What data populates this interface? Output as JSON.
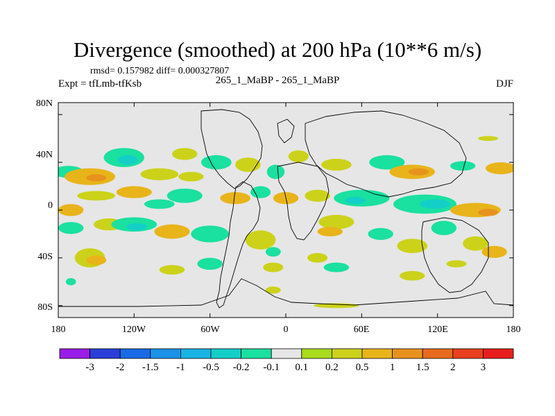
{
  "title": "Divergence (smoothed) at 200 hPa (10**6 m/s)",
  "stats": "rmsd= 0.157982 diff= 0.000327807",
  "experiment": "Expt = tfLmb-tfKsb",
  "comparison": "265_1_MaBP - 265_1_MaBP",
  "season": "DJF",
  "chart_data": {
    "type": "heatmap",
    "projection": "cylindrical-equidistant",
    "variable": "Divergence (smoothed) at 200 hPa",
    "units": "10**6 m/s",
    "x_range": [
      -180,
      180
    ],
    "y_range": [
      -90,
      90
    ],
    "x_ticks": [
      {
        "value": -180,
        "label": "180"
      },
      {
        "value": -120,
        "label": "120W"
      },
      {
        "value": -60,
        "label": "60W"
      },
      {
        "value": 0,
        "label": "0"
      },
      {
        "value": 60,
        "label": "60E"
      },
      {
        "value": 120,
        "label": "120E"
      },
      {
        "value": 180,
        "label": "180"
      }
    ],
    "y_ticks": [
      {
        "value": 80,
        "label": "80N"
      },
      {
        "value": 40,
        "label": "40N"
      },
      {
        "value": 0,
        "label": "0"
      },
      {
        "value": -40,
        "label": "40S"
      },
      {
        "value": -80,
        "label": "80S"
      }
    ],
    "contour_levels": [
      "-3",
      "-2",
      "-1.5",
      "-1",
      "-0.5",
      "-0.2",
      "-0.1",
      "0.1",
      "0.2",
      "0.5",
      "1",
      "1.5",
      "2",
      "3"
    ],
    "colorbar_colors": [
      "#9a1ee8",
      "#2a3fd8",
      "#1a6ae6",
      "#1a92e8",
      "#1ab3e4",
      "#14cfc8",
      "#1ae0a0",
      "#e6e6e6",
      "#a8dc1c",
      "#ccd21a",
      "#e8b41a",
      "#e8921e",
      "#e86a1e",
      "#e8401e",
      "#e81e1e"
    ],
    "field_blobs": [
      {
        "lon": -172,
        "lat": 32,
        "rx": 12,
        "ry": 5,
        "level": -0.2
      },
      {
        "lon": -155,
        "lat": 28,
        "rx": 20,
        "ry": 7,
        "level": 0.5
      },
      {
        "lon": -150,
        "lat": 27,
        "rx": 8,
        "ry": 3,
        "level": 1
      },
      {
        "lon": -128,
        "lat": 44,
        "rx": 16,
        "ry": 8,
        "level": -0.2
      },
      {
        "lon": -125,
        "lat": 42,
        "rx": 8,
        "ry": 4,
        "level": -0.5
      },
      {
        "lon": -100,
        "lat": 30,
        "rx": 15,
        "ry": 5,
        "level": 0.2
      },
      {
        "lon": -80,
        "lat": 47,
        "rx": 10,
        "ry": 5,
        "level": 0.2
      },
      {
        "lon": -75,
        "lat": 28,
        "rx": 10,
        "ry": 4,
        "level": 0.2
      },
      {
        "lon": -55,
        "lat": 40,
        "rx": 12,
        "ry": 6,
        "level": -0.2
      },
      {
        "lon": -30,
        "lat": 38,
        "rx": 10,
        "ry": 6,
        "level": 0.2
      },
      {
        "lon": -8,
        "lat": 32,
        "rx": 7,
        "ry": 6,
        "level": -0.2
      },
      {
        "lon": 10,
        "lat": 45,
        "rx": 8,
        "ry": 5,
        "level": 0.2
      },
      {
        "lon": 40,
        "lat": 38,
        "rx": 12,
        "ry": 5,
        "level": 0.2
      },
      {
        "lon": 80,
        "lat": 40,
        "rx": 14,
        "ry": 6,
        "level": -0.2
      },
      {
        "lon": 100,
        "lat": 32,
        "rx": 18,
        "ry": 6,
        "level": 0.5
      },
      {
        "lon": 105,
        "lat": 32,
        "rx": 8,
        "ry": 3,
        "level": 1
      },
      {
        "lon": 140,
        "lat": 37,
        "rx": 10,
        "ry": 4,
        "level": -0.2
      },
      {
        "lon": 170,
        "lat": 35,
        "rx": 12,
        "ry": 5,
        "level": 0.5
      },
      {
        "lon": 160,
        "lat": 60,
        "rx": 8,
        "ry": 2,
        "level": 0.2
      },
      {
        "lon": -150,
        "lat": 12,
        "rx": 15,
        "ry": 4,
        "level": 0.2
      },
      {
        "lon": -120,
        "lat": 15,
        "rx": 14,
        "ry": 5,
        "level": 0.5
      },
      {
        "lon": -100,
        "lat": 5,
        "rx": 12,
        "ry": 4,
        "level": -0.2
      },
      {
        "lon": -80,
        "lat": 12,
        "rx": 14,
        "ry": 6,
        "level": -0.2
      },
      {
        "lon": -40,
        "lat": 10,
        "rx": 12,
        "ry": 5,
        "level": 0.5
      },
      {
        "lon": -20,
        "lat": 15,
        "rx": 8,
        "ry": 5,
        "level": -0.2
      },
      {
        "lon": 0,
        "lat": 10,
        "rx": 10,
        "ry": 5,
        "level": 0.5
      },
      {
        "lon": 25,
        "lat": 12,
        "rx": 10,
        "ry": 5,
        "level": 0.2
      },
      {
        "lon": 60,
        "lat": 10,
        "rx": 22,
        "ry": 7,
        "level": -0.2
      },
      {
        "lon": 55,
        "lat": 8,
        "rx": 8,
        "ry": 3,
        "level": -0.5
      },
      {
        "lon": 110,
        "lat": 5,
        "rx": 25,
        "ry": 8,
        "level": -0.2
      },
      {
        "lon": 118,
        "lat": 5,
        "rx": 12,
        "ry": 4,
        "level": -0.5
      },
      {
        "lon": 150,
        "lat": 0,
        "rx": 20,
        "ry": 6,
        "level": 0.5
      },
      {
        "lon": 160,
        "lat": -2,
        "rx": 8,
        "ry": 3,
        "level": 1
      },
      {
        "lon": -170,
        "lat": 0,
        "rx": 10,
        "ry": 5,
        "level": 0.5
      },
      {
        "lon": -170,
        "lat": -15,
        "rx": 10,
        "ry": 5,
        "level": -0.2
      },
      {
        "lon": -140,
        "lat": -12,
        "rx": 12,
        "ry": 5,
        "level": 0.2
      },
      {
        "lon": -120,
        "lat": -12,
        "rx": 18,
        "ry": 6,
        "level": -0.2
      },
      {
        "lon": -118,
        "lat": -14,
        "rx": 8,
        "ry": 3,
        "level": -0.5
      },
      {
        "lon": -90,
        "lat": -18,
        "rx": 14,
        "ry": 6,
        "level": 0.5
      },
      {
        "lon": -60,
        "lat": -20,
        "rx": 15,
        "ry": 7,
        "level": -0.2
      },
      {
        "lon": -20,
        "lat": -25,
        "rx": 12,
        "ry": 8,
        "level": 0.2
      },
      {
        "lon": -10,
        "lat": -35,
        "rx": 6,
        "ry": 4,
        "level": -0.2
      },
      {
        "lon": 40,
        "lat": -10,
        "rx": 14,
        "ry": 6,
        "level": 0.2
      },
      {
        "lon": 35,
        "lat": -18,
        "rx": 10,
        "ry": 4,
        "level": 0.5
      },
      {
        "lon": 75,
        "lat": -20,
        "rx": 10,
        "ry": 5,
        "level": -0.2
      },
      {
        "lon": 100,
        "lat": -30,
        "rx": 12,
        "ry": 6,
        "level": 0.2
      },
      {
        "lon": 125,
        "lat": -15,
        "rx": 10,
        "ry": 6,
        "level": -0.2
      },
      {
        "lon": 150,
        "lat": -28,
        "rx": 10,
        "ry": 6,
        "level": 0.2
      },
      {
        "lon": 165,
        "lat": -35,
        "rx": 10,
        "ry": 5,
        "level": 0.5
      },
      {
        "lon": -155,
        "lat": -40,
        "rx": 12,
        "ry": 8,
        "level": 0.2
      },
      {
        "lon": -150,
        "lat": -42,
        "rx": 8,
        "ry": 4,
        "level": 0.5
      },
      {
        "lon": -170,
        "lat": -60,
        "rx": 4,
        "ry": 3,
        "level": -0.2
      },
      {
        "lon": -90,
        "lat": -50,
        "rx": 10,
        "ry": 4,
        "level": 0.2
      },
      {
        "lon": -60,
        "lat": -45,
        "rx": 10,
        "ry": 5,
        "level": -0.2
      },
      {
        "lon": -10,
        "lat": -48,
        "rx": 8,
        "ry": 4,
        "level": 0.2
      },
      {
        "lon": 25,
        "lat": -40,
        "rx": 8,
        "ry": 4,
        "level": 0.2
      },
      {
        "lon": 40,
        "lat": -48,
        "rx": 10,
        "ry": 4,
        "level": -0.2
      },
      {
        "lon": 100,
        "lat": -55,
        "rx": 10,
        "ry": 4,
        "level": 0.2
      },
      {
        "lon": 135,
        "lat": -45,
        "rx": 8,
        "ry": 3,
        "level": 0.2
      },
      {
        "lon": -10,
        "lat": -67,
        "rx": 6,
        "ry": 3,
        "level": 0.2
      },
      {
        "lon": 40,
        "lat": -80,
        "rx": 18,
        "ry": 2,
        "level": 0.2
      }
    ]
  }
}
